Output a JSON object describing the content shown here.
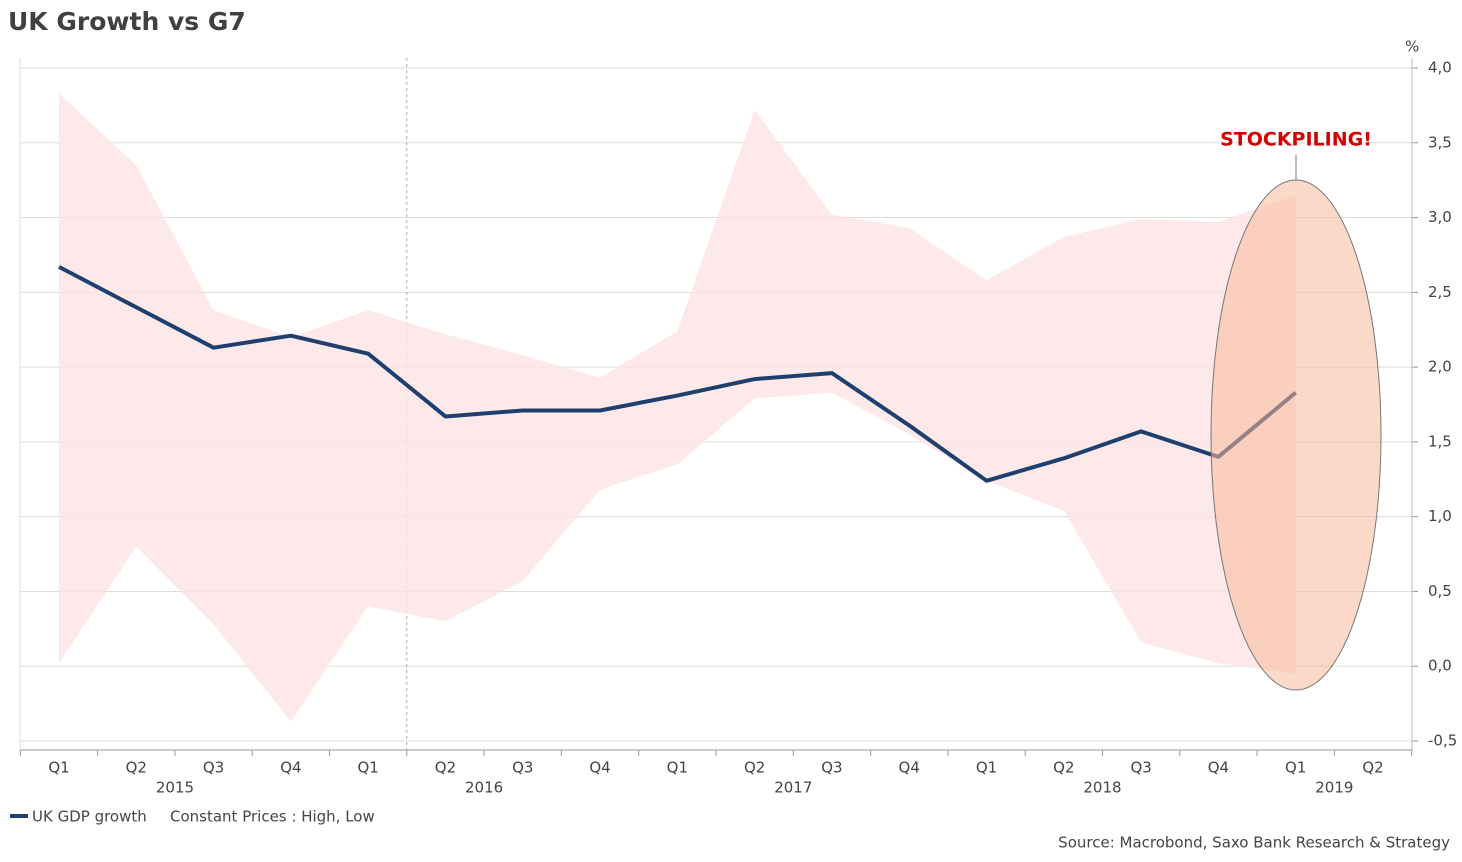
{
  "chart_data": {
    "type": "line",
    "title": "UK Growth vs G7",
    "y_unit": "%",
    "annotation": "STOCKPILING!",
    "source": "Source: Macrobond, Saxo Bank Research & Strategy",
    "categories": [
      "Q1",
      "Q2",
      "Q3",
      "Q4",
      "Q1",
      "Q2",
      "Q3",
      "Q4",
      "Q1",
      "Q2",
      "Q3",
      "Q4",
      "Q1",
      "Q2",
      "Q3",
      "Q4",
      "Q1",
      "Q2"
    ],
    "year_groups": [
      {
        "label": "2015",
        "first": 0,
        "last": 3
      },
      {
        "label": "2016",
        "first": 4,
        "last": 7
      },
      {
        "label": "2017",
        "first": 8,
        "last": 11
      },
      {
        "label": "2018",
        "first": 12,
        "last": 15
      },
      {
        "label": "2019",
        "first": 16,
        "last": 17
      }
    ],
    "band": {
      "name": "Constant Prices : High, Low",
      "color": "#fde4e4",
      "high": [
        3.83,
        3.35,
        2.38,
        2.2,
        2.38,
        2.22,
        2.08,
        1.93,
        2.24,
        3.72,
        3.02,
        2.93,
        2.58,
        2.87,
        2.99,
        2.97,
        3.15,
        null
      ],
      "low": [
        0.02,
        0.8,
        0.28,
        -0.37,
        0.4,
        0.3,
        0.57,
        1.18,
        1.35,
        1.79,
        1.83,
        1.55,
        1.24,
        1.04,
        0.16,
        0.02,
        -0.05,
        null
      ]
    },
    "series": [
      {
        "name": "UK GDP growth",
        "color": "#1f3f6e",
        "values": [
          2.67,
          2.4,
          2.13,
          2.21,
          2.09,
          1.67,
          1.71,
          1.71,
          1.81,
          1.92,
          1.96,
          1.61,
          1.24,
          1.39,
          1.57,
          1.4,
          1.83,
          null
        ]
      }
    ],
    "ylim": [
      -0.5,
      4.0
    ],
    "yticks": [
      {
        "value": -0.5,
        "label": "-0,5"
      },
      {
        "value": 0,
        "label": "0,0"
      },
      {
        "value": 0.5,
        "label": "0,5"
      },
      {
        "value": 1,
        "label": "1,0"
      },
      {
        "value": 1.5,
        "label": "1,5"
      },
      {
        "value": 2,
        "label": "2,0"
      },
      {
        "value": 2.5,
        "label": "2,5"
      },
      {
        "value": 3,
        "label": "3,0"
      },
      {
        "value": 3.5,
        "label": "3,5"
      },
      {
        "value": 4,
        "label": "4,0"
      }
    ],
    "grid": true
  }
}
